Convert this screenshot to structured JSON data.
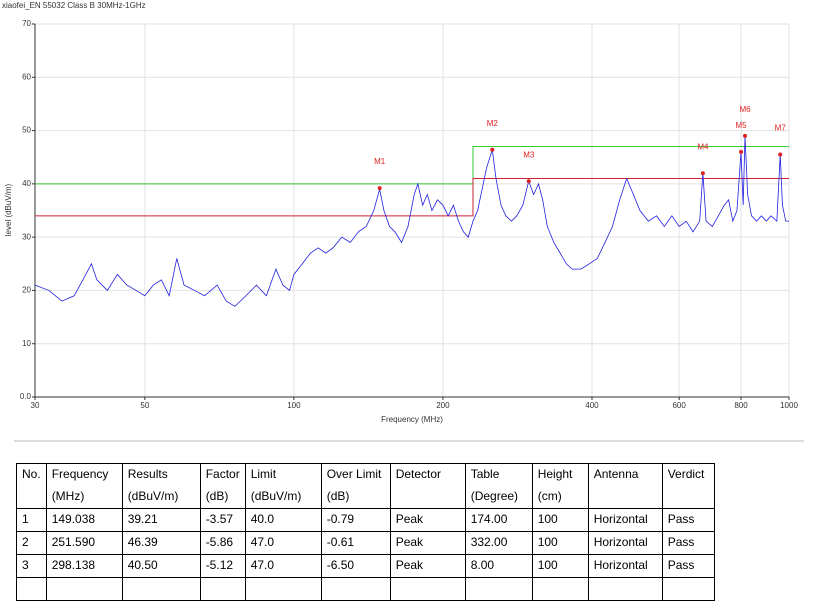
{
  "chart_data": {
    "type": "line",
    "title": "xiaofei_EN 55032 Class B 30MHz-1GHz",
    "xlabel": "Frequency (MHz)",
    "ylabel": "level (dBuV/m)",
    "xscale": "log",
    "xlim": [
      30,
      1000
    ],
    "xticks": [
      30,
      50,
      100,
      200,
      400,
      600,
      800,
      1000
    ],
    "ylim": [
      0,
      70
    ],
    "yticks": [
      {
        "value": 0,
        "label": "0.0"
      },
      10,
      20,
      30,
      40,
      50,
      60,
      70
    ],
    "grid": true,
    "series": [
      {
        "color": "#2020e0",
        "x": [
          30,
          32,
          34,
          36,
          38,
          39,
          40,
          42,
          44,
          46,
          48,
          50,
          52,
          54,
          56,
          58,
          60,
          63,
          66,
          70,
          73,
          76,
          80,
          84,
          88,
          92,
          95,
          98,
          100,
          104,
          108,
          112,
          116,
          120,
          125,
          130,
          135,
          140,
          145,
          149,
          152,
          156,
          160,
          165,
          170,
          175,
          178,
          182,
          186,
          190,
          195,
          200,
          205,
          210,
          215,
          220,
          225,
          230,
          235,
          240,
          245,
          251.6,
          256,
          262,
          268,
          275,
          282,
          290,
          298,
          305,
          312,
          318,
          325,
          335,
          345,
          355,
          365,
          380,
          395,
          410,
          425,
          440,
          455,
          470,
          485,
          500,
          520,
          540,
          560,
          580,
          600,
          620,
          640,
          660,
          670,
          680,
          700,
          720,
          740,
          755,
          770,
          785,
          800,
          808,
          815,
          825,
          840,
          860,
          880,
          900,
          920,
          945,
          960,
          970,
          985,
          1000
        ],
        "values": [
          21,
          20,
          18,
          19,
          23,
          25,
          22,
          20,
          23,
          21,
          20,
          19,
          21,
          22,
          19,
          26,
          21,
          20,
          19,
          21,
          18,
          17,
          19,
          21,
          19,
          24,
          21,
          20,
          23,
          25,
          27,
          28,
          27,
          28,
          30,
          29,
          31,
          32,
          35,
          39,
          35,
          32,
          31,
          29,
          32,
          38,
          40,
          36,
          38,
          35,
          37,
          36,
          34,
          36,
          33,
          31,
          30,
          33,
          35,
          39,
          43,
          46.4,
          41,
          36,
          34,
          33,
          34,
          36,
          40.5,
          38,
          40,
          37,
          32,
          29,
          27,
          25,
          24,
          24,
          25,
          26,
          29,
          32,
          37,
          41,
          38,
          35,
          33,
          34,
          32,
          34,
          32,
          33,
          31,
          33,
          42,
          33,
          32,
          34,
          36,
          37,
          33,
          35,
          46,
          36,
          49,
          38,
          34,
          33,
          34,
          33,
          34,
          33,
          45.5,
          36,
          33,
          33
        ]
      }
    ],
    "limit_lines": [
      {
        "color": "#33cc33",
        "x": [
          30,
          230,
          230,
          1000
        ],
        "values": [
          40,
          40,
          47,
          47
        ]
      },
      {
        "color": "#cc2233",
        "x": [
          30,
          230,
          230,
          1000
        ],
        "values": [
          34,
          34,
          41,
          41
        ]
      }
    ],
    "marker_color": "#e02020",
    "markers": [
      {
        "label": "M1",
        "x": 149.038,
        "y": 39.21
      },
      {
        "label": "M2",
        "x": 251.59,
        "y": 46.39
      },
      {
        "label": "M3",
        "x": 298.138,
        "y": 40.5
      },
      {
        "label": "M4",
        "x": 670,
        "y": 42
      },
      {
        "label": "M5",
        "x": 800,
        "y": 46
      },
      {
        "label": "M6",
        "x": 815,
        "y": 49
      },
      {
        "label": "M7",
        "x": 960,
        "y": 45.5
      }
    ]
  },
  "table": {
    "headers": [
      [
        "No."
      ],
      [
        "Frequency",
        "(MHz)"
      ],
      [
        "Results",
        "(dBuV/m)"
      ],
      [
        "Factor",
        "(dB)"
      ],
      [
        "Limit",
        "(dBuV/m)"
      ],
      [
        "Over Limit",
        "(dB)"
      ],
      [
        "Detector"
      ],
      [
        "Table",
        "(Degree)"
      ],
      [
        "Height",
        "(cm)"
      ],
      [
        "Antenna"
      ],
      [
        "Verdict"
      ]
    ],
    "rows": [
      [
        "1",
        "149.038",
        "39.21",
        "-3.57",
        "40.0",
        "-0.79",
        "Peak",
        "174.00",
        "100",
        "Horizontal",
        "Pass"
      ],
      [
        "2",
        "251.590",
        "46.39",
        "-5.86",
        "47.0",
        "-0.61",
        "Peak",
        "332.00",
        "100",
        "Horizontal",
        "Pass"
      ],
      [
        "3",
        "298.138",
        "40.50",
        "-5.12",
        "47.0",
        "-6.50",
        "Peak",
        "8.00",
        "100",
        "Horizontal",
        "Pass"
      ]
    ]
  }
}
